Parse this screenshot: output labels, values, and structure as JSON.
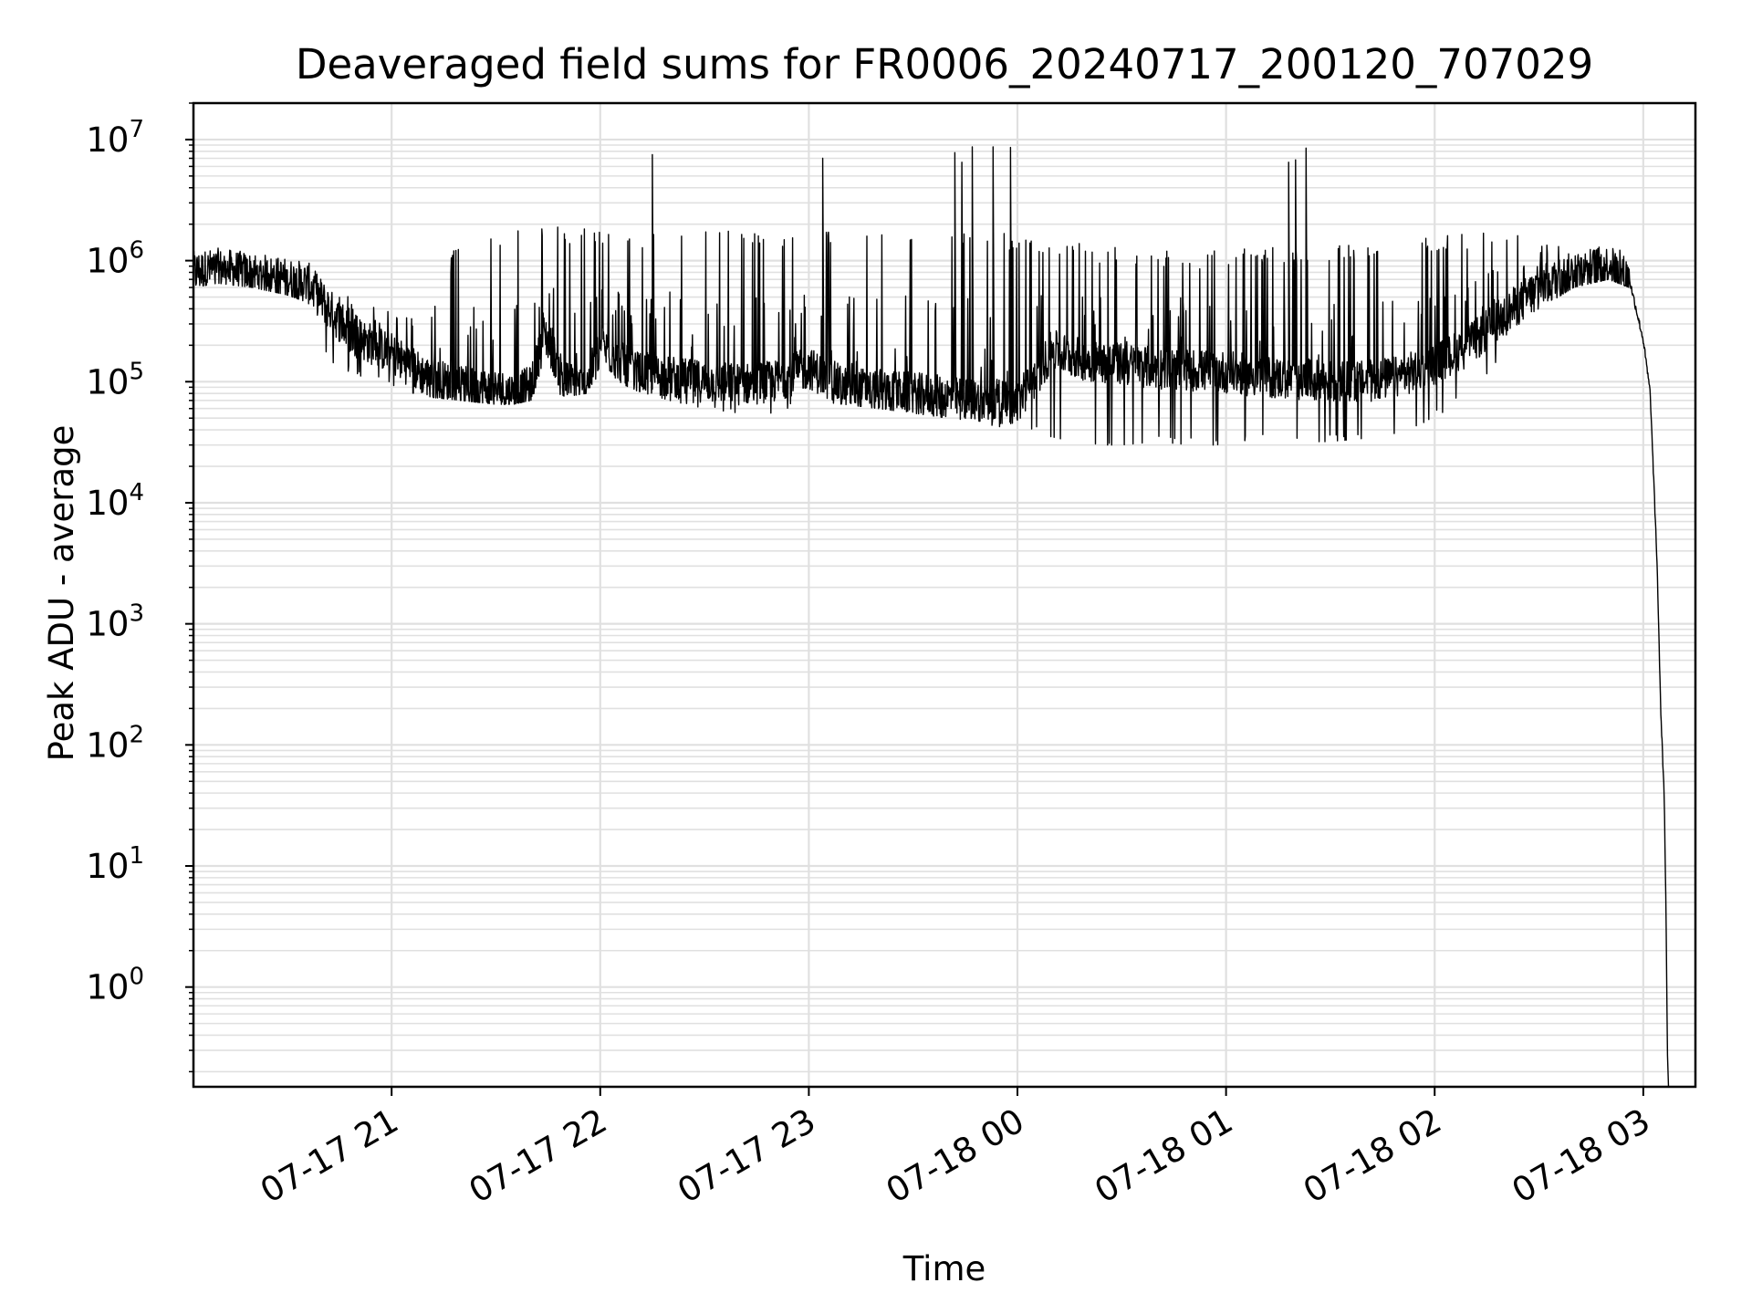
{
  "chart_data": {
    "type": "line",
    "title": "Deaveraged field sums for FR0006_20240717_200120_707029",
    "xlabel": "Time",
    "ylabel": "Peak ADU - average",
    "yscale": "log",
    "xlim": [
      "2024-07-17T20:03",
      "2024-07-18T03:15"
    ],
    "ylim": [
      0.15,
      20000000
    ],
    "grid": true,
    "line_color": "#000000",
    "grid_color": "#e0e0e0",
    "x_ticks": [
      {
        "value": "2024-07-17T21:00",
        "label": "07-17 21"
      },
      {
        "value": "2024-07-17T22:00",
        "label": "07-17 22"
      },
      {
        "value": "2024-07-17T23:00",
        "label": "07-17 23"
      },
      {
        "value": "2024-07-18T00:00",
        "label": "07-18 00"
      },
      {
        "value": "2024-07-18T01:00",
        "label": "07-18 01"
      },
      {
        "value": "2024-07-18T02:00",
        "label": "07-18 02"
      },
      {
        "value": "2024-07-18T03:00",
        "label": "07-18 03"
      }
    ],
    "y_ticks": [
      {
        "value": 1,
        "base": "10",
        "exp": "0"
      },
      {
        "value": 10,
        "base": "10",
        "exp": "1"
      },
      {
        "value": 100,
        "base": "10",
        "exp": "2"
      },
      {
        "value": 1000,
        "base": "10",
        "exp": "3"
      },
      {
        "value": 10000,
        "base": "10",
        "exp": "4"
      },
      {
        "value": 100000,
        "base": "10",
        "exp": "5"
      },
      {
        "value": 1000000,
        "base": "10",
        "exp": "6"
      },
      {
        "value": 10000000,
        "base": "10",
        "exp": "7"
      }
    ],
    "series": [
      {
        "x": [
          "2024-07-17T20:03",
          "2024-07-17T20:10",
          "2024-07-17T20:20",
          "2024-07-17T20:30",
          "2024-07-17T20:36",
          "2024-07-17T20:42",
          "2024-07-17T20:48",
          "2024-07-17T21:00",
          "2024-07-17T21:10",
          "2024-07-17T21:20",
          "2024-07-17T21:30",
          "2024-07-17T21:35",
          "2024-07-17T21:40",
          "2024-07-17T21:44",
          "2024-07-17T21:50",
          "2024-07-17T21:56",
          "2024-07-17T22:00",
          "2024-07-17T22:05",
          "2024-07-17T22:10",
          "2024-07-17T22:20",
          "2024-07-17T22:30",
          "2024-07-17T22:40",
          "2024-07-17T22:50",
          "2024-07-17T23:00",
          "2024-07-17T23:10",
          "2024-07-17T23:20",
          "2024-07-17T23:30",
          "2024-07-17T23:40",
          "2024-07-17T23:50",
          "2024-07-18T00:00",
          "2024-07-18T00:10",
          "2024-07-18T00:20",
          "2024-07-18T00:30",
          "2024-07-18T00:40",
          "2024-07-18T00:50",
          "2024-07-18T01:00",
          "2024-07-18T01:10",
          "2024-07-18T01:20",
          "2024-07-18T01:30",
          "2024-07-18T01:40",
          "2024-07-18T01:50",
          "2024-07-18T02:00",
          "2024-07-18T02:10",
          "2024-07-18T02:20",
          "2024-07-18T02:30",
          "2024-07-18T02:40",
          "2024-07-18T02:50",
          "2024-07-18T02:56",
          "2024-07-18T03:00",
          "2024-07-18T03:02",
          "2024-07-18T03:04",
          "2024-07-18T03:05",
          "2024-07-18T03:06",
          "2024-07-18T03:06.5",
          "2024-07-18T03:07"
        ],
        "y_base": [
          800000,
          850000,
          780000,
          700000,
          650000,
          400000,
          250000,
          170000,
          110000,
          90000,
          85000,
          80000,
          90000,
          250000,
          100000,
          90000,
          200000,
          150000,
          120000,
          110000,
          100000,
          95000,
          100000,
          130000,
          90000,
          85000,
          80000,
          75000,
          70000,
          65000,
          180000,
          150000,
          140000,
          130000,
          125000,
          120000,
          110000,
          105000,
          100000,
          100000,
          110000,
          140000,
          200000,
          350000,
          600000,
          800000,
          900000,
          700000,
          220000,
          80000,
          3000,
          200,
          40,
          5,
          0.2
        ],
        "y_low": [
          600000,
          650000,
          600000,
          520000,
          450000,
          150000,
          120000,
          90000,
          75000,
          70000,
          65000,
          65000,
          70000,
          90000,
          75000,
          80000,
          120000,
          100000,
          85000,
          70000,
          60000,
          55000,
          55000,
          70000,
          65000,
          60000,
          55000,
          50000,
          45000,
          40000,
          35000,
          30000,
          30000,
          32000,
          30000,
          30000,
          32000,
          32000,
          32000,
          34000,
          38000,
          50000,
          80000,
          150000,
          400000,
          600000,
          700000,
          600000,
          220000,
          80000,
          3000,
          200,
          40,
          5,
          0.2
        ],
        "y_high": [
          1100000,
          1200000,
          1000000,
          1000000,
          900000,
          700000,
          500000,
          400000,
          300000,
          1900000,
          1900000,
          1900000,
          1900000,
          1900000,
          1900000,
          1900000,
          1900000,
          1800000,
          1800000,
          1700000,
          1800000,
          1800000,
          1800000,
          1800000,
          1800000,
          1800000,
          1900000,
          2000000,
          1800000,
          1700000,
          1500000,
          1400000,
          1300000,
          1300000,
          1200000,
          1200000,
          1300000,
          1300000,
          1300000,
          1400000,
          1500000,
          1600000,
          1700000,
          1700000,
          1600000,
          1400000,
          1300000,
          1300000,
          220000,
          80000,
          3000,
          200,
          40,
          5,
          0.2
        ],
        "spikes": [
          {
            "x": "2024-07-17T22:15",
            "y": 7500000
          },
          {
            "x": "2024-07-17T23:04",
            "y": 7000000
          },
          {
            "x": "2024-07-17T23:42",
            "y": 7800000
          },
          {
            "x": "2024-07-17T23:44",
            "y": 6500000
          },
          {
            "x": "2024-07-17T23:47",
            "y": 8700000
          },
          {
            "x": "2024-07-17T23:53",
            "y": 8700000
          },
          {
            "x": "2024-07-17T23:58",
            "y": 8600000
          },
          {
            "x": "2024-07-18T01:18",
            "y": 6500000
          },
          {
            "x": "2024-07-18T01:20",
            "y": 6800000
          },
          {
            "x": "2024-07-18T01:23",
            "y": 8500000
          }
        ]
      }
    ]
  }
}
